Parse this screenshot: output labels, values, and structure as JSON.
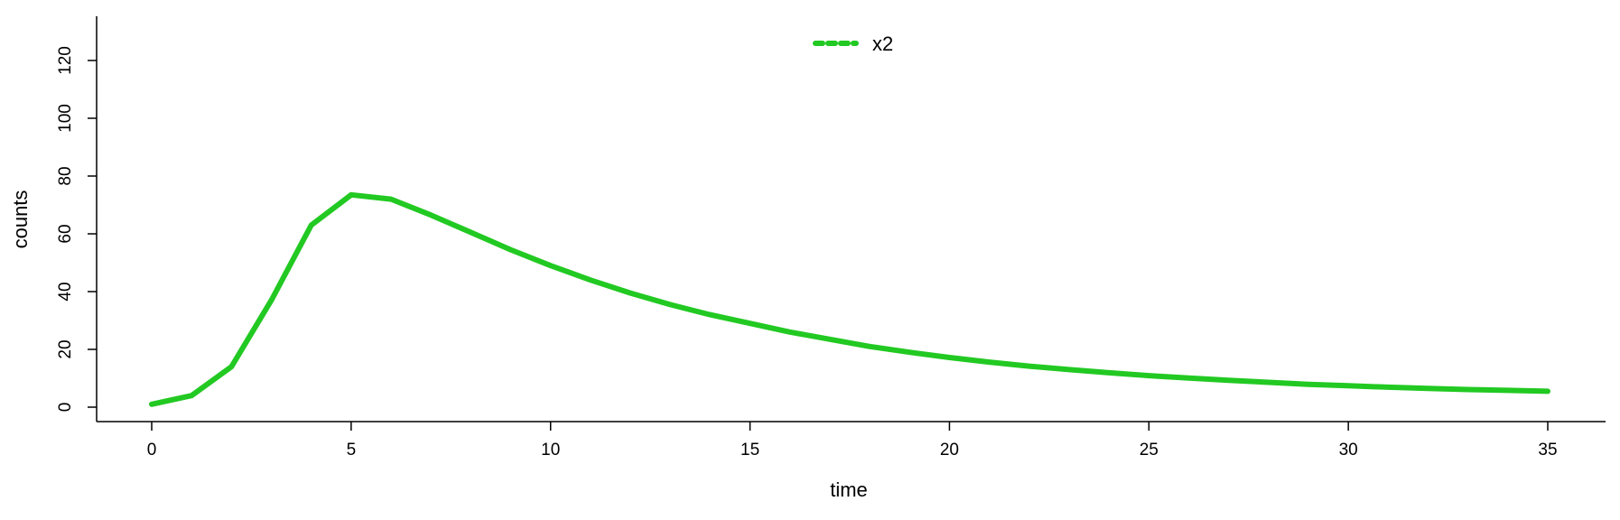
{
  "chart_data": {
    "type": "line",
    "title": "",
    "xlabel": "time",
    "ylabel": "counts",
    "xlim": [
      0,
      35
    ],
    "ylim": [
      0,
      120
    ],
    "x_ticks": [
      0,
      5,
      10,
      15,
      20,
      25,
      30,
      35
    ],
    "y_ticks": [
      0,
      20,
      40,
      60,
      80,
      100,
      120
    ],
    "grid": false,
    "legend_position": "top-center",
    "series": [
      {
        "name": "x2",
        "color": "#22c922",
        "line_style": "solid",
        "legend_line_style": "dashed",
        "x": [
          0,
          1,
          2,
          3,
          4,
          5,
          6,
          7,
          8,
          9,
          10,
          11,
          12,
          13,
          14,
          15,
          16,
          17,
          18,
          19,
          20,
          21,
          22,
          23,
          24,
          25,
          26,
          27,
          28,
          29,
          30,
          31,
          32,
          33,
          34,
          35
        ],
        "y": [
          1,
          4,
          14,
          37,
          63,
          73.5,
          72,
          66.5,
          60.5,
          54.5,
          49,
          44,
          39.5,
          35.5,
          32,
          29,
          26,
          23.5,
          21,
          19,
          17.2,
          15.6,
          14.2,
          13,
          11.9,
          10.9,
          10.1,
          9.3,
          8.6,
          7.9,
          7.4,
          6.9,
          6.5,
          6.1,
          5.8,
          5.5
        ]
      }
    ]
  }
}
